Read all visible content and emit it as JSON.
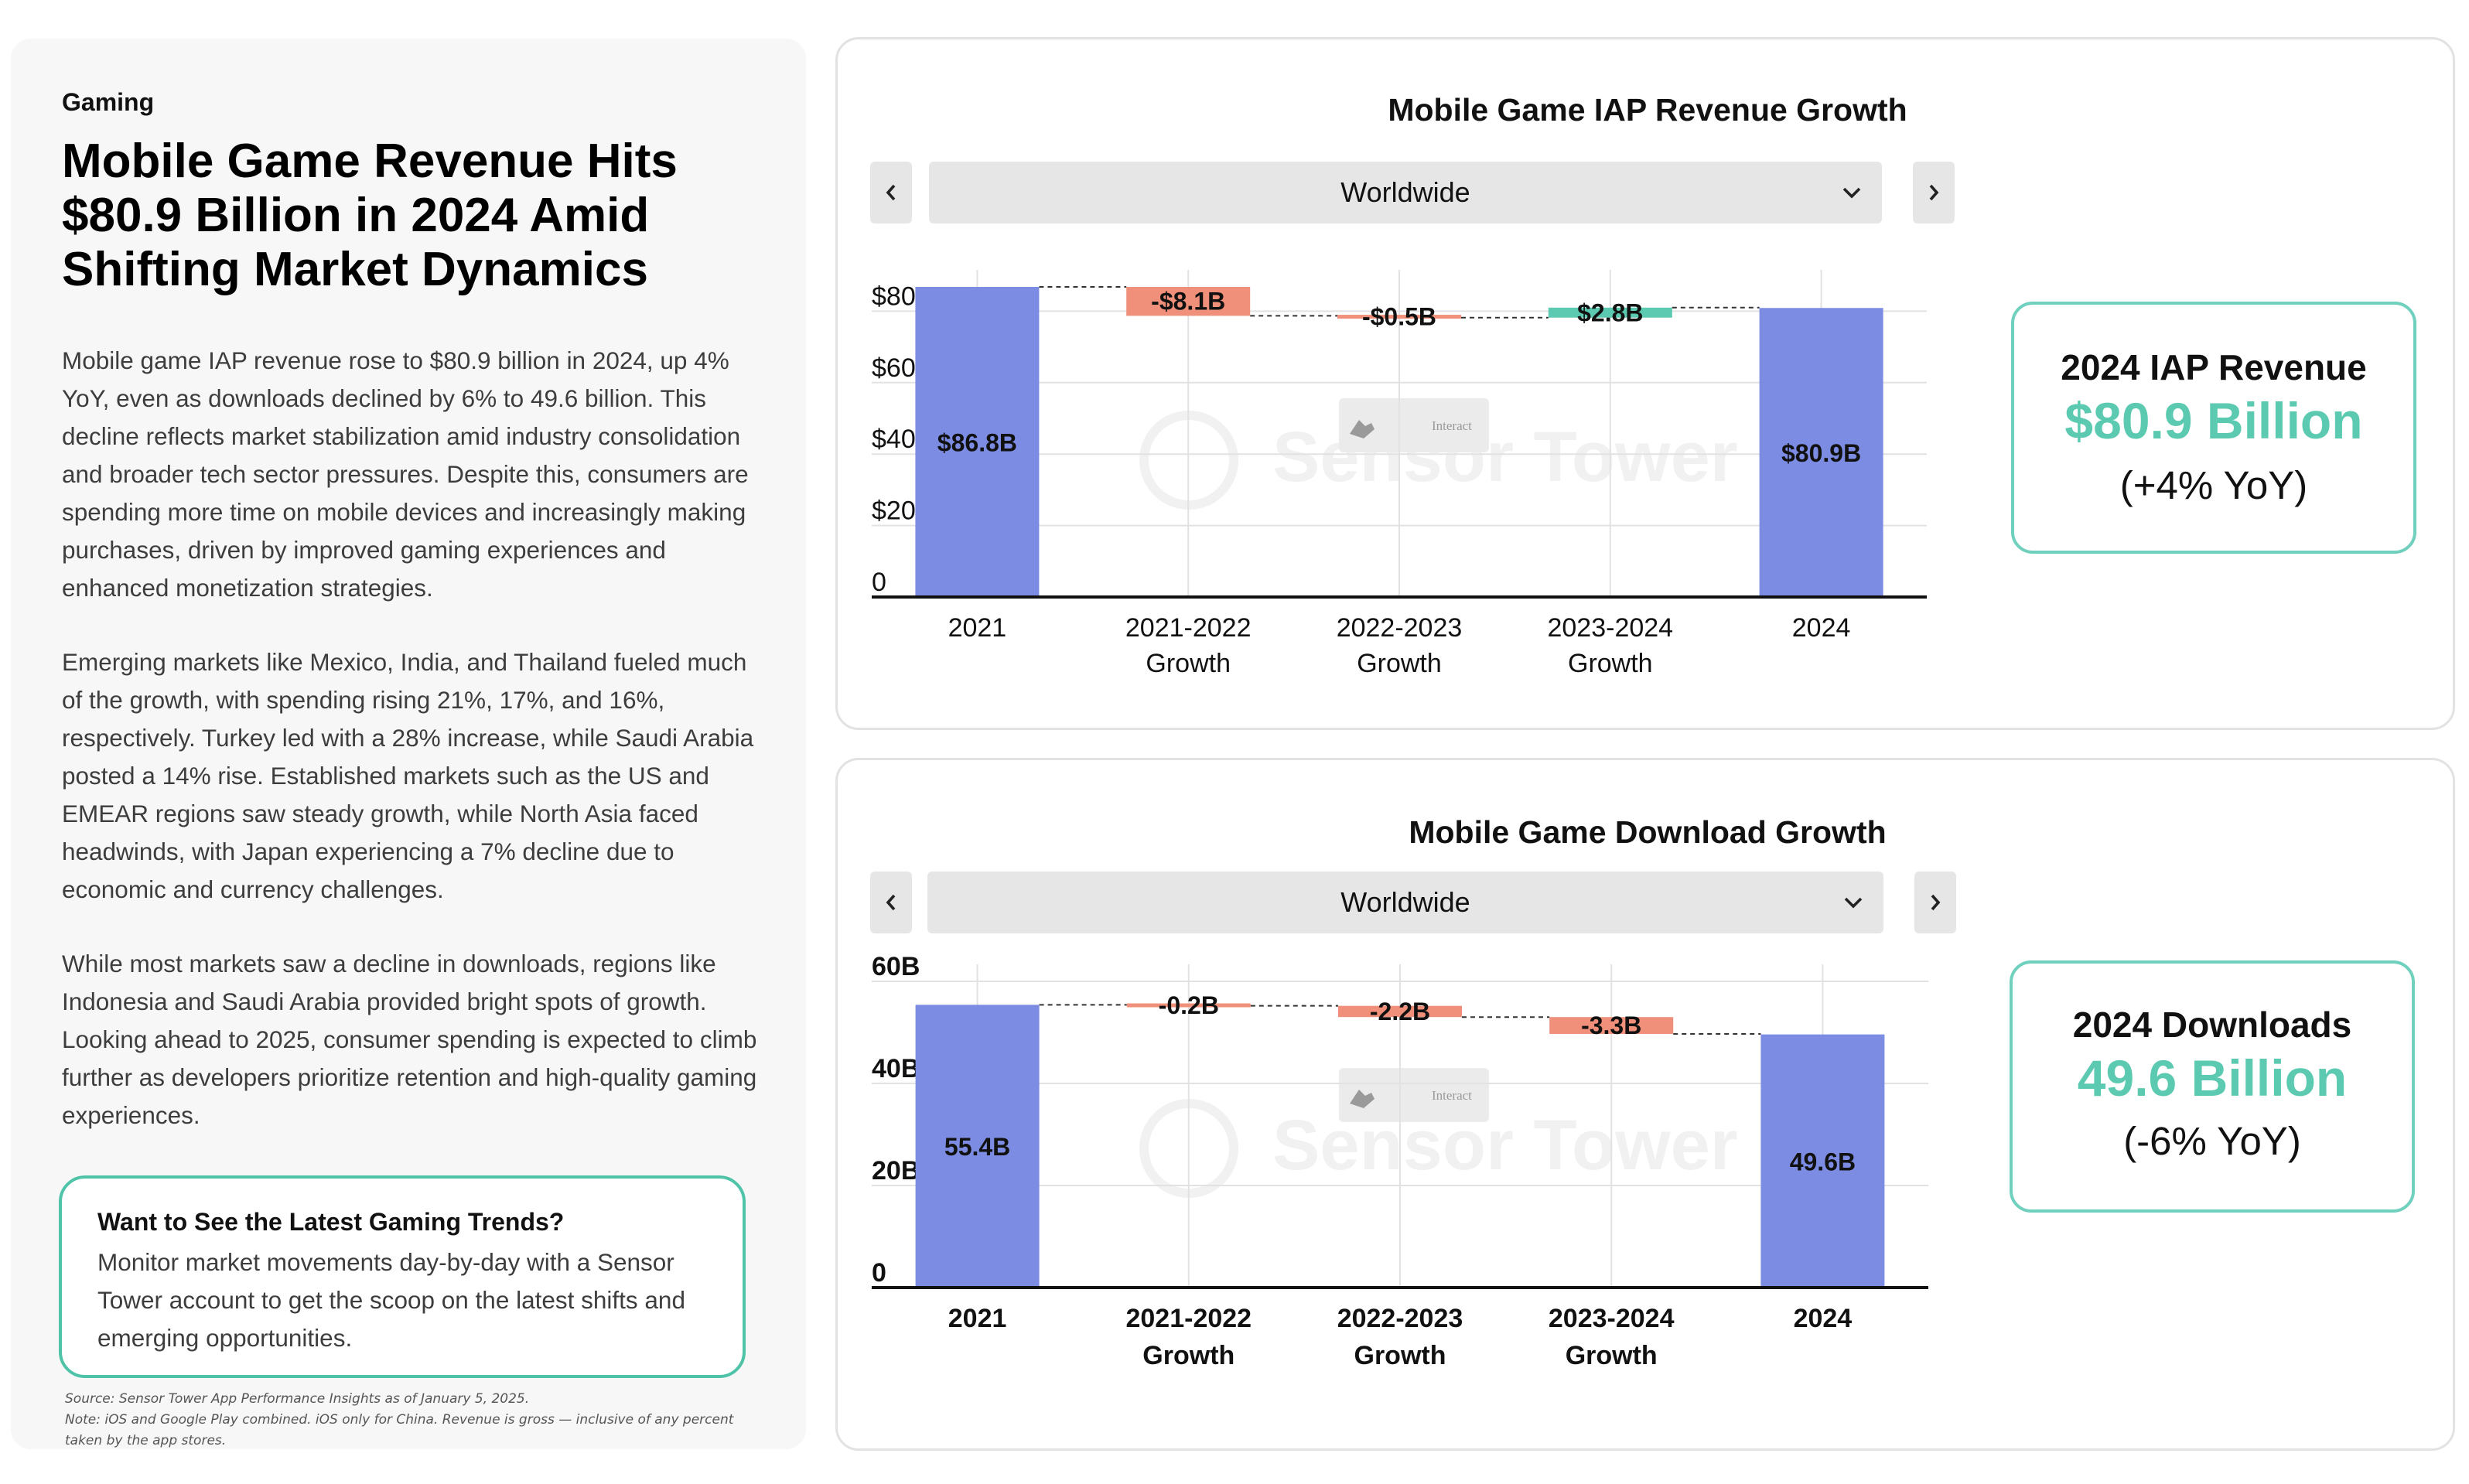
{
  "article": {
    "category": "Gaming",
    "headline": "Mobile Game Revenue Hits $80.9 Billion in 2024 Amid Shifting Market Dynamics",
    "paragraphs": [
      "Mobile game IAP revenue rose to $80.9 billion in 2024, up 4% YoY, even as downloads declined by 6% to 49.6 billion. This decline reflects market stabilization amid industry consolidation and broader tech sector pressures. Despite this, consumers are spending more time on mobile devices and increasingly making purchases, driven by improved gaming experiences and enhanced monetization strategies.",
      "Emerging markets like Mexico, India, and Thailand fueled much of the growth, with spending rising 21%, 17%, and 16%, respectively. Turkey led with a 28% increase, while Saudi Arabia posted a 14% rise. Established markets such as the US and EMEAR regions saw steady growth, while North Asia faced headwinds, with Japan experiencing a 7% decline due to economic and currency challenges.",
      "While most markets saw a decline in downloads, regions like Indonesia and Saudi Arabia provided bright spots of growth. Looking ahead to 2025, consumer spending is expected to climb further as developers prioritize retention and high-quality gaming experiences."
    ],
    "cta": {
      "title": "Want to See the Latest Gaming Trends?",
      "text": "Monitor market movements day-by-day with a Sensor Tower account to get the scoop on the latest shifts and emerging opportunities."
    },
    "source": "Source: Sensor Tower App Performance Insights as of January 5, 2025.",
    "note": "Note: iOS and Google Play combined. iOS only for China. Revenue is gross — inclusive of any percent taken by the app stores."
  },
  "watermark": {
    "brand": "Sensor Tower",
    "hint": "Interact"
  },
  "kpis": [
    {
      "label": "2024 IAP Revenue",
      "value": "$80.9 Billion",
      "change": "(+4% YoY)"
    },
    {
      "label": "2024 Downloads",
      "value": "49.6 Billion",
      "change": "(-6% YoY)"
    }
  ],
  "colors": {
    "total": "#7c8ce3",
    "decrease": "#f0907a",
    "increase": "#5ccab1",
    "accent": "#5ccab1"
  },
  "chart_data": [
    {
      "type": "bar",
      "subtype": "waterfall",
      "title": "Mobile Game IAP Revenue Growth",
      "region": "Worldwide",
      "categories": [
        [
          "2021"
        ],
        [
          "2021-2022",
          "Growth"
        ],
        [
          "2022-2023",
          "Growth"
        ],
        [
          "2023-2024",
          "Growth"
        ],
        [
          "2024"
        ]
      ],
      "values": [
        86.8,
        -8.1,
        -0.5,
        2.8,
        80.9
      ],
      "kinds": [
        "total",
        "delta",
        "delta",
        "delta",
        "total"
      ],
      "labels": [
        "$86.8B",
        "-$8.1B",
        "-$0.5B",
        "$2.8B",
        "$80.9B"
      ],
      "yticks": [
        0,
        20,
        40,
        60,
        80
      ],
      "ytick_labels": [
        "0",
        "$20B",
        "$40B",
        "$60B",
        "$80B"
      ],
      "ylim": [
        0,
        86.8
      ],
      "grid": true,
      "bold_categories": false
    },
    {
      "type": "bar",
      "subtype": "waterfall",
      "title": "Mobile Game Download Growth",
      "region": "Worldwide",
      "categories": [
        [
          "2021"
        ],
        [
          "2021-2022",
          "Growth"
        ],
        [
          "2022-2023",
          "Growth"
        ],
        [
          "2023-2024",
          "Growth"
        ],
        [
          "2024"
        ]
      ],
      "values": [
        55.4,
        -0.2,
        -2.2,
        -3.3,
        49.6
      ],
      "kinds": [
        "total",
        "delta",
        "delta",
        "delta",
        "total"
      ],
      "labels": [
        "55.4B",
        "-0.2B",
        "-2.2B",
        "-3.3B",
        "49.6B"
      ],
      "yticks": [
        0,
        20,
        40,
        60
      ],
      "ytick_labels": [
        "0",
        "20B",
        "40B",
        "60B"
      ],
      "ylim": [
        0,
        60
      ],
      "grid": true,
      "bold_categories": true
    }
  ]
}
